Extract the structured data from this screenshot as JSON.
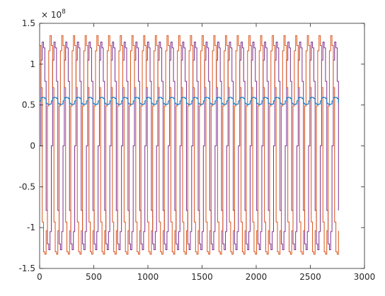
{
  "chart_data": {
    "type": "line",
    "title": "",
    "xlabel": "",
    "ylabel": "",
    "xlim": [
      0,
      3000
    ],
    "ylim": [
      -1.5,
      1.5
    ],
    "y_scale_exponent_label": "× 10",
    "y_scale_exponent": "8",
    "y_multiplier": 100000000,
    "grid": false,
    "legend": "none",
    "x_ticks": [
      {
        "value": 0,
        "label": "0"
      },
      {
        "value": 500,
        "label": "500"
      },
      {
        "value": 1000,
        "label": "1000"
      },
      {
        "value": 1500,
        "label": "1500"
      },
      {
        "value": 2000,
        "label": "2000"
      },
      {
        "value": 2500,
        "label": "2500"
      },
      {
        "value": 3000,
        "label": "3000"
      }
    ],
    "y_ticks": [
      {
        "value": -1.5,
        "label": "-1.5"
      },
      {
        "value": -1,
        "label": "-1"
      },
      {
        "value": -0.5,
        "label": "-0.5"
      },
      {
        "value": 0,
        "label": "0"
      },
      {
        "value": 0.5,
        "label": "0.5"
      },
      {
        "value": 1,
        "label": "1"
      },
      {
        "value": 1.5,
        "label": "1.5"
      }
    ],
    "series": [
      {
        "color": "#7e2f8e",
        "x_start": 0,
        "x_end": 2760,
        "period": 108,
        "amplitude": 1.28,
        "offset": 0.0,
        "phase": 0.0
      },
      {
        "color": "#d95319",
        "x_start": 0,
        "x_end": 2760,
        "period": 108,
        "amplitude": 1.35,
        "offset": 0.0,
        "phase": 0.35
      },
      {
        "color": "#0072bd",
        "x_start": 0,
        "x_end": 2760,
        "period": 108,
        "amplitude": 0.045,
        "offset": 0.55,
        "phase": 0.0
      }
    ]
  }
}
